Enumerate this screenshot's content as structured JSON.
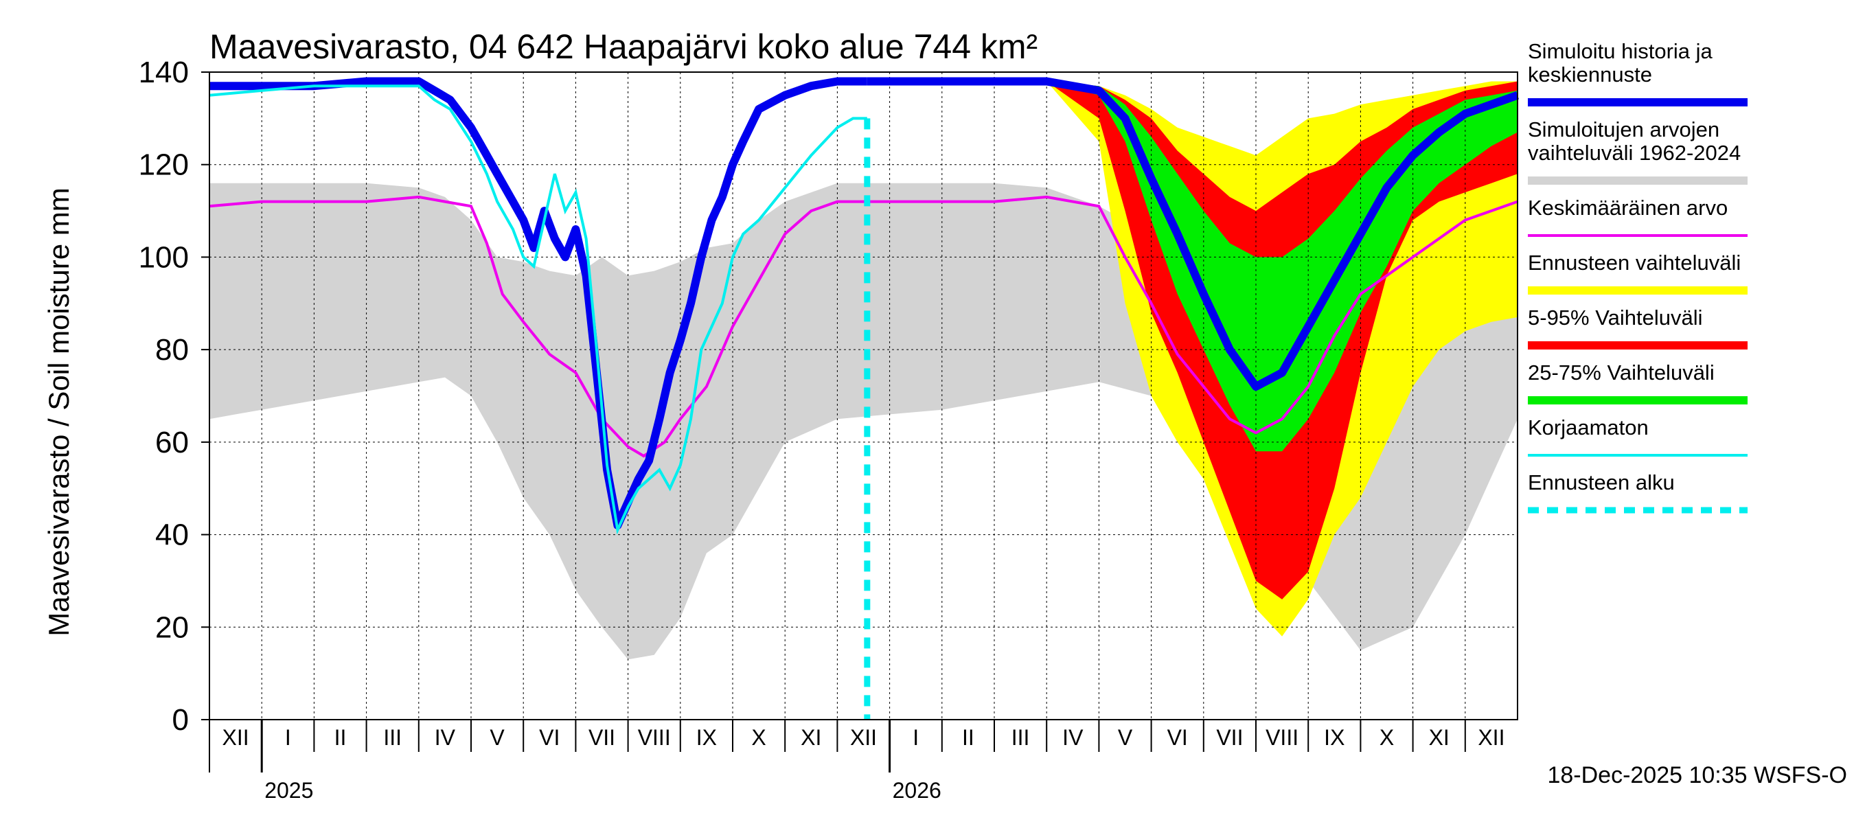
{
  "chart_data": {
    "type": "area",
    "title": "Maavesivarasto, 04 642 Haapajärvi koko alue 744 km²",
    "ylabel": "Maavesivarasto / Soil moisture   mm",
    "ylim": [
      0,
      140
    ],
    "yticks": [
      0,
      20,
      40,
      60,
      80,
      100,
      120,
      140
    ],
    "x_unit": "months since 2024-12-01",
    "xlim": [
      0,
      25
    ],
    "months": [
      {
        "label": "XII",
        "start": 0
      },
      {
        "label": "I",
        "start": 1
      },
      {
        "label": "II",
        "start": 2
      },
      {
        "label": "III",
        "start": 3
      },
      {
        "label": "IV",
        "start": 4
      },
      {
        "label": "V",
        "start": 5
      },
      {
        "label": "VI",
        "start": 6
      },
      {
        "label": "VII",
        "start": 7
      },
      {
        "label": "VIII",
        "start": 8
      },
      {
        "label": "IX",
        "start": 9
      },
      {
        "label": "X",
        "start": 10
      },
      {
        "label": "XI",
        "start": 11
      },
      {
        "label": "XII",
        "start": 12
      },
      {
        "label": "I",
        "start": 13
      },
      {
        "label": "II",
        "start": 14
      },
      {
        "label": "III",
        "start": 15
      },
      {
        "label": "IV",
        "start": 16
      },
      {
        "label": "V",
        "start": 17
      },
      {
        "label": "VI",
        "start": 18
      },
      {
        "label": "VII",
        "start": 19
      },
      {
        "label": "VIII",
        "start": 20
      },
      {
        "label": "IX",
        "start": 21
      },
      {
        "label": "X",
        "start": 22
      },
      {
        "label": "XI",
        "start": 23
      },
      {
        "label": "XII",
        "start": 24
      }
    ],
    "years": [
      {
        "label": "2025",
        "start": 1
      },
      {
        "label": "2026",
        "start": 13
      }
    ],
    "forecast_start": 12.57,
    "footer": "18-Dec-2025 10:35 WSFS-O",
    "colors": {
      "history": "#0000ee",
      "range_hist": "#d3d3d3",
      "mean": "#ee00ee",
      "forecast_range": "#ffff00",
      "p5_95": "#ff0000",
      "p25_75": "#00ee00",
      "uncorrected": "#00eeee",
      "grid": "#000000"
    },
    "legend": [
      {
        "label": "Simuloitu historia ja keskiennuste",
        "lines": [
          "Simuloitu historia ja",
          "keskiennuste"
        ],
        "color": "#0000ee",
        "style": "thick"
      },
      {
        "label": "Simuloitujen arvojen vaihteluväli 1962-2024",
        "lines": [
          "Simuloitujen arvojen",
          "vaihteluväli 1962-2024"
        ],
        "color": "#d3d3d3",
        "style": "thick"
      },
      {
        "label": "Keskimääräinen arvo",
        "lines": [
          "Keskimääräinen arvo"
        ],
        "color": "#ee00ee",
        "style": "thin"
      },
      {
        "label": "Ennusteen vaihteluväli",
        "lines": [
          "Ennusteen vaihteluväli"
        ],
        "color": "#ffff00",
        "style": "thick"
      },
      {
        "label": "5-95% Vaihteluväli",
        "lines": [
          "5-95% Vaihteluväli"
        ],
        "color": "#ff0000",
        "style": "thick"
      },
      {
        "label": "25-75% Vaihteluväli",
        "lines": [
          "25-75% Vaihteluväli"
        ],
        "color": "#00ee00",
        "style": "thick"
      },
      {
        "label": "Korjaamaton",
        "lines": [
          "Korjaamaton"
        ],
        "color": "#00eeee",
        "style": "thin"
      },
      {
        "label": "Ennusteen alku",
        "lines": [
          "Ennusteen alku"
        ],
        "color": "#00eeee",
        "style": "dashed"
      }
    ],
    "series": [
      {
        "name": "hist_range_upper",
        "x": [
          0,
          0.5,
          1,
          2,
          3,
          4,
          4.5,
          5,
          5.5,
          6,
          6.5,
          7,
          7.5,
          8,
          8.5,
          9,
          9.5,
          10,
          10.5,
          11,
          12,
          13,
          14,
          15,
          16,
          17,
          18,
          19,
          20,
          21,
          22,
          23,
          24,
          25
        ],
        "values": [
          116,
          116,
          116,
          116,
          116,
          115,
          113,
          108,
          100,
          99,
          97,
          96,
          100,
          96,
          97,
          99,
          102,
          103,
          108,
          112,
          116,
          116,
          116,
          116,
          115,
          111,
          105,
          101,
          97,
          101,
          103,
          110,
          115,
          116
        ]
      },
      {
        "name": "hist_range_lower",
        "x": [
          0,
          0.5,
          1,
          2,
          3,
          4,
          4.5,
          5,
          5.5,
          6,
          6.5,
          7,
          7.5,
          8,
          8.5,
          9,
          9.5,
          10,
          10.5,
          11,
          12,
          13,
          14,
          15,
          16,
          17,
          18,
          19,
          20,
          21,
          22,
          23,
          24,
          25
        ],
        "values": [
          65,
          66,
          67,
          69,
          71,
          73,
          74,
          70,
          60,
          48,
          40,
          28,
          20,
          13,
          14,
          22,
          36,
          40,
          50,
          60,
          65,
          66,
          67,
          69,
          71,
          73,
          70,
          58,
          45,
          30,
          15,
          20,
          40,
          65
        ]
      },
      {
        "name": "mean",
        "x": [
          0,
          1,
          2,
          3,
          4,
          4.5,
          5,
          5.3,
          5.6,
          6,
          6.5,
          7,
          7.5,
          8,
          8.3,
          8.7,
          9,
          9.5,
          10,
          10.5,
          11,
          11.5,
          12,
          13,
          14,
          15,
          16,
          17,
          17.5,
          18,
          18.5,
          19,
          19.5,
          20,
          20.5,
          21,
          21.5,
          22,
          23,
          24,
          25
        ],
        "values": [
          111,
          112,
          112,
          112,
          113,
          112,
          111,
          103,
          92,
          86,
          79,
          75,
          65,
          59,
          57,
          60,
          65,
          72,
          85,
          95,
          105,
          110,
          112,
          112,
          112,
          112,
          113,
          111,
          100,
          90,
          79,
          72,
          65,
          62,
          65,
          72,
          83,
          92,
          100,
          108,
          112
        ]
      },
      {
        "name": "history",
        "x": [
          0,
          1,
          2,
          3,
          4,
          4.3,
          4.6,
          5,
          5.3,
          5.5,
          5.8,
          6,
          6.2,
          6.4,
          6.6,
          6.8,
          7,
          7.2,
          7.4,
          7.6,
          7.8,
          8,
          8.2,
          8.4,
          8.6,
          8.8,
          9,
          9.2,
          9.4,
          9.6,
          9.8,
          10,
          10.2,
          10.5,
          11,
          11.5,
          12,
          12.57
        ],
        "values": [
          137,
          137,
          137,
          138,
          138,
          136,
          134,
          128,
          122,
          118,
          112,
          108,
          102,
          110,
          104,
          100,
          106,
          96,
          75,
          54,
          42,
          47,
          52,
          56,
          65,
          75,
          82,
          90,
          100,
          108,
          113,
          120,
          125,
          132,
          135,
          137,
          138,
          138
        ]
      },
      {
        "name": "uncorrected",
        "x": [
          0,
          1,
          2,
          3,
          4,
          4.3,
          4.6,
          5,
          5.3,
          5.5,
          5.8,
          6,
          6.2,
          6.4,
          6.6,
          6.8,
          7,
          7.2,
          7.4,
          7.6,
          7.8,
          8,
          8.2,
          8.4,
          8.6,
          8.8,
          9,
          9.2,
          9.4,
          9.6,
          9.8,
          10,
          10.2,
          10.5,
          11,
          11.5,
          12,
          12.3,
          12.57
        ],
        "values": [
          135,
          136,
          137,
          137,
          137,
          134,
          132,
          125,
          118,
          112,
          106,
          100,
          98,
          108,
          118,
          110,
          114,
          104,
          80,
          55,
          41,
          46,
          50,
          52,
          54,
          50,
          55,
          65,
          80,
          85,
          90,
          100,
          105,
          108,
          115,
          122,
          128,
          130,
          130
        ]
      },
      {
        "name": "forecast_mean",
        "x": [
          12.57,
          14,
          16,
          17,
          17.5,
          18,
          18.5,
          19,
          19.5,
          20,
          20.5,
          21,
          21.5,
          22,
          22.5,
          23,
          23.5,
          24,
          24.5,
          25
        ],
        "values": [
          138,
          138,
          138,
          136,
          130,
          117,
          105,
          92,
          80,
          72,
          75,
          85,
          95,
          105,
          115,
          122,
          127,
          131,
          133,
          135
        ]
      },
      {
        "name": "p25_upper",
        "x": [
          12.57,
          16,
          17,
          17.5,
          18,
          18.5,
          19,
          19.5,
          20,
          20.5,
          21,
          21.5,
          22,
          22.5,
          23,
          23.5,
          24,
          24.5,
          25
        ],
        "values": [
          138,
          138,
          137,
          133,
          126,
          118,
          110,
          103,
          100,
          100,
          104,
          110,
          117,
          123,
          128,
          131,
          134,
          135,
          136
        ]
      },
      {
        "name": "p25_lower",
        "x": [
          12.57,
          16,
          17,
          17.5,
          18,
          18.5,
          19,
          19.5,
          20,
          20.5,
          21,
          21.5,
          22,
          22.5,
          23,
          23.5,
          24,
          24.5,
          25
        ],
        "values": [
          138,
          138,
          135,
          125,
          108,
          92,
          80,
          68,
          58,
          58,
          65,
          75,
          88,
          98,
          110,
          116,
          120,
          124,
          127
        ]
      },
      {
        "name": "p5_upper",
        "x": [
          12.57,
          16,
          17,
          17.5,
          18,
          18.5,
          19,
          19.5,
          20,
          20.5,
          21,
          21.5,
          22,
          22.5,
          23,
          23.5,
          24,
          24.5,
          25
        ],
        "values": [
          138,
          138,
          137,
          134,
          130,
          123,
          118,
          113,
          110,
          114,
          118,
          120,
          125,
          128,
          132,
          134,
          136,
          137,
          138
        ]
      },
      {
        "name": "p5_lower",
        "x": [
          12.57,
          16,
          17,
          17.5,
          18,
          18.5,
          19,
          19.5,
          20,
          20.5,
          21,
          21.5,
          22,
          22.5,
          23,
          23.5,
          24,
          24.5,
          25
        ],
        "values": [
          138,
          138,
          130,
          110,
          88,
          75,
          60,
          45,
          30,
          26,
          32,
          50,
          75,
          96,
          108,
          112,
          114,
          116,
          118
        ]
      },
      {
        "name": "forecast_upper",
        "x": [
          12.57,
          16,
          17,
          17.5,
          18,
          18.5,
          19,
          19.5,
          20,
          20.5,
          21,
          21.5,
          22,
          22.5,
          23,
          23.5,
          24,
          24.5,
          25
        ],
        "values": [
          138,
          138,
          137,
          135,
          132,
          128,
          126,
          124,
          122,
          126,
          130,
          131,
          133,
          134,
          135,
          136,
          137,
          138,
          138
        ]
      },
      {
        "name": "forecast_lower",
        "x": [
          12.57,
          16,
          17,
          17.5,
          18,
          18.5,
          19,
          19.5,
          20,
          20.5,
          21,
          21.5,
          22,
          22.5,
          23,
          23.5,
          24,
          24.5,
          25
        ],
        "values": [
          138,
          138,
          125,
          90,
          70,
          60,
          52,
          38,
          24,
          18,
          26,
          40,
          48,
          60,
          72,
          80,
          84,
          86,
          87
        ]
      }
    ]
  }
}
